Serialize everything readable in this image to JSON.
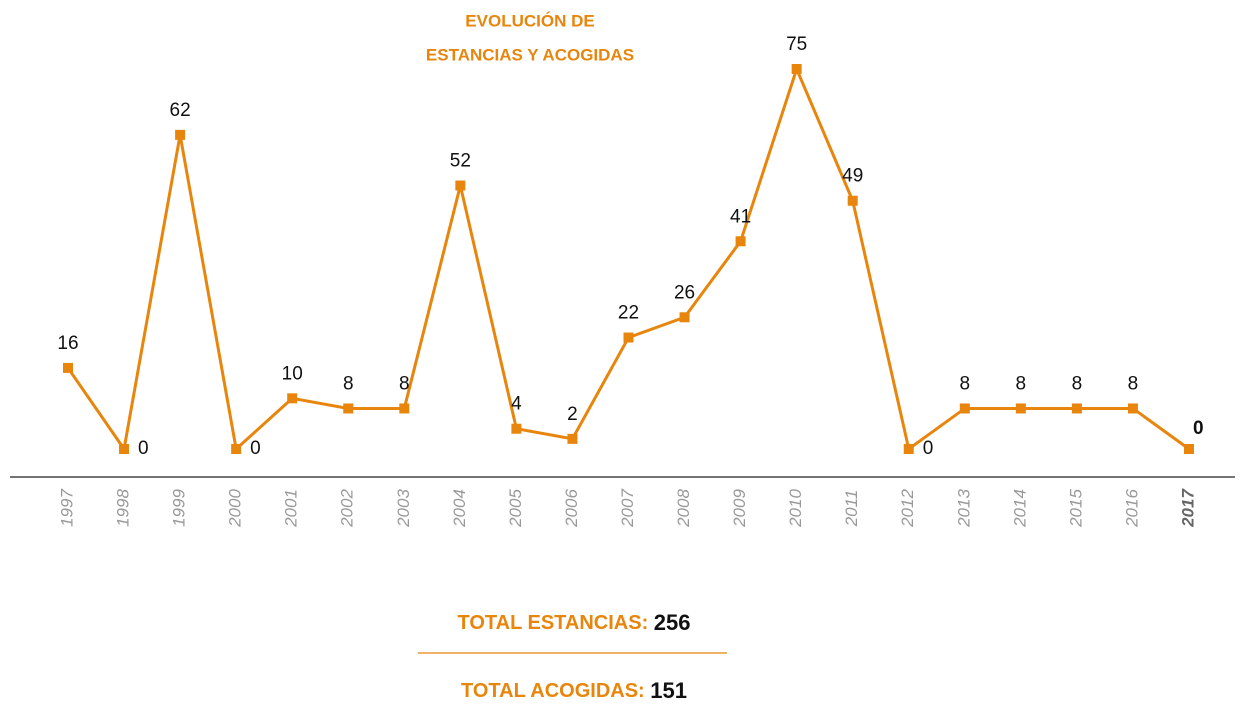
{
  "chart_data": {
    "type": "line",
    "title": [
      "EVOLUCIÓN DE",
      "ESTANCIAS Y ACOGIDAS"
    ],
    "categories": [
      "1997",
      "1998",
      "1999",
      "2000",
      "2001",
      "2002",
      "2003",
      "2004",
      "2005",
      "2006",
      "2007",
      "2008",
      "2009",
      "2010",
      "2011",
      "2012",
      "2013",
      "2014",
      "2015",
      "2016",
      "2017"
    ],
    "series": [
      {
        "name": "Estancias y acogidas",
        "color": "#e8850c",
        "values": [
          16,
          0,
          62,
          0,
          10,
          8,
          8,
          52,
          4,
          2,
          22,
          26,
          41,
          75,
          49,
          0,
          8,
          8,
          8,
          8,
          0
        ]
      }
    ],
    "ylim": [
      0,
      75
    ],
    "highlight_last": true,
    "totals": [
      {
        "label": "TOTAL ESTANCIAS:",
        "value": 256
      },
      {
        "label": "TOTAL ACOGIDAS:",
        "value": 151
      }
    ]
  }
}
